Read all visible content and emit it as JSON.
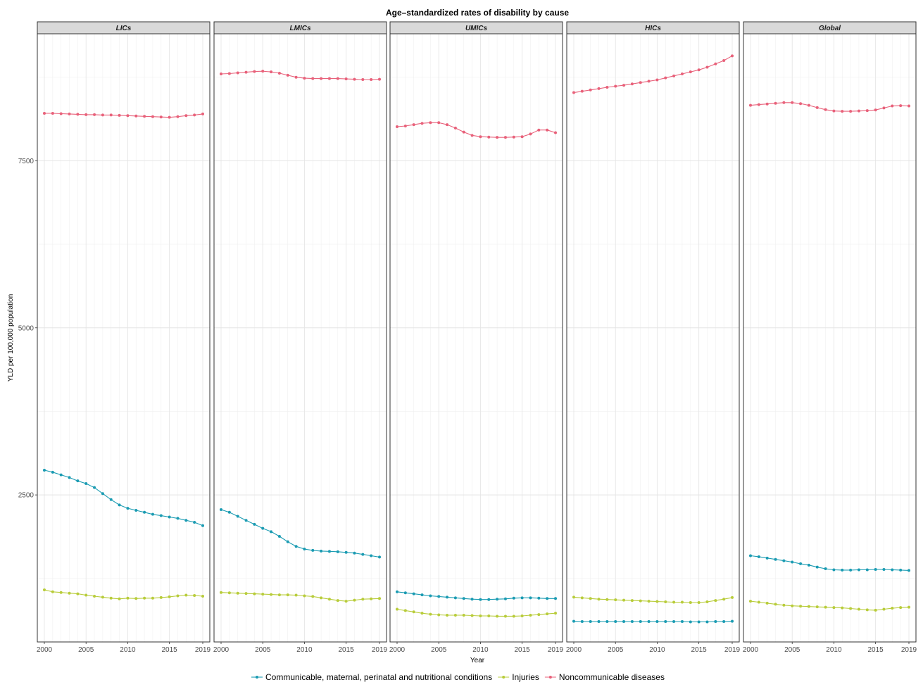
{
  "chart_data": {
    "type": "line",
    "title": "Age–standardized rates of disability by cause",
    "xlabel": "Year",
    "ylabel": "YLD per 100,000 population",
    "xlim": [
      2000,
      2019
    ],
    "ylim": [
      300,
      9400
    ],
    "x_ticks": [
      2000,
      2005,
      2010,
      2015,
      2019
    ],
    "y_ticks": [
      2500,
      5000,
      7500
    ],
    "grid": true,
    "legend_position": "bottom",
    "x": [
      2000,
      2001,
      2002,
      2003,
      2004,
      2005,
      2006,
      2007,
      2008,
      2009,
      2010,
      2011,
      2012,
      2013,
      2014,
      2015,
      2016,
      2017,
      2018,
      2019
    ],
    "series_meta": [
      {
        "name": "Communicable, maternal, perinatal and nutritional conditions",
        "color": "#1A9BB2"
      },
      {
        "name": "Injuries",
        "color": "#B8CC3A"
      },
      {
        "name": "Noncommunicable diseases",
        "color": "#E8617A"
      }
    ],
    "panels": [
      {
        "label": "LICs",
        "series": [
          {
            "name": "Communicable, maternal, perinatal and nutritional conditions",
            "values": [
              2870,
              2840,
              2800,
              2760,
              2710,
              2670,
              2610,
              2520,
              2430,
              2350,
              2300,
              2270,
              2240,
              2210,
              2190,
              2170,
              2150,
              2120,
              2090,
              2040
            ]
          },
          {
            "name": "Injuries",
            "values": [
              1080,
              1050,
              1040,
              1030,
              1020,
              1000,
              985,
              970,
              955,
              945,
              955,
              950,
              955,
              955,
              965,
              975,
              990,
              1000,
              995,
              985
            ]
          },
          {
            "name": "Noncommunicable diseases",
            "values": [
              8210,
              8210,
              8205,
              8200,
              8195,
              8190,
              8190,
              8185,
              8185,
              8180,
              8175,
              8170,
              8165,
              8160,
              8155,
              8150,
              8160,
              8175,
              8185,
              8200
            ]
          }
        ]
      },
      {
        "label": "LMICs",
        "series": [
          {
            "name": "Communicable, maternal, perinatal and nutritional conditions",
            "values": [
              2280,
              2240,
              2180,
              2120,
              2060,
              2000,
              1950,
              1880,
              1800,
              1730,
              1690,
              1670,
              1660,
              1655,
              1650,
              1640,
              1630,
              1610,
              1590,
              1570
            ]
          },
          {
            "name": "Injuries",
            "values": [
              1040,
              1035,
              1030,
              1025,
              1020,
              1015,
              1010,
              1005,
              1005,
              1000,
              990,
              980,
              960,
              940,
              920,
              910,
              925,
              940,
              945,
              950
            ]
          },
          {
            "name": "Noncommunicable diseases",
            "values": [
              8800,
              8805,
              8815,
              8825,
              8835,
              8840,
              8830,
              8810,
              8780,
              8750,
              8735,
              8730,
              8730,
              8730,
              8730,
              8725,
              8720,
              8715,
              8715,
              8720
            ]
          }
        ]
      },
      {
        "label": "UMICs",
        "series": [
          {
            "name": "Communicable, maternal, perinatal and nutritional conditions",
            "values": [
              1050,
              1035,
              1020,
              1005,
              990,
              980,
              970,
              960,
              950,
              940,
              935,
              935,
              940,
              945,
              955,
              960,
              960,
              955,
              950,
              950
            ]
          },
          {
            "name": "Injuries",
            "values": [
              790,
              770,
              750,
              730,
              715,
              705,
              700,
              700,
              700,
              695,
              690,
              690,
              685,
              685,
              685,
              690,
              700,
              710,
              720,
              730
            ]
          },
          {
            "name": "Noncommunicable diseases",
            "values": [
              8010,
              8020,
              8040,
              8060,
              8070,
              8070,
              8040,
              7990,
              7930,
              7880,
              7860,
              7855,
              7850,
              7850,
              7855,
              7860,
              7900,
              7960,
              7960,
              7920
            ]
          }
        ]
      },
      {
        "label": "HICs",
        "series": [
          {
            "name": "Communicable, maternal, perinatal and nutritional conditions",
            "values": [
              610,
              605,
              605,
              605,
              605,
              605,
              605,
              605,
              605,
              605,
              605,
              605,
              605,
              605,
              600,
              600,
              600,
              605,
              605,
              610
            ]
          },
          {
            "name": "Injuries",
            "values": [
              970,
              960,
              950,
              940,
              935,
              930,
              925,
              920,
              915,
              910,
              905,
              900,
              895,
              895,
              890,
              890,
              900,
              920,
              940,
              965
            ]
          },
          {
            "name": "Noncommunicable diseases",
            "values": [
              8520,
              8540,
              8560,
              8580,
              8600,
              8615,
              8630,
              8650,
              8670,
              8690,
              8710,
              8740,
              8770,
              8800,
              8830,
              8860,
              8900,
              8950,
              9000,
              9070
            ]
          }
        ]
      },
      {
        "label": "Global",
        "series": [
          {
            "name": "Communicable, maternal, perinatal and nutritional conditions",
            "values": [
              1590,
              1575,
              1555,
              1535,
              1515,
              1495,
              1470,
              1450,
              1420,
              1395,
              1380,
              1375,
              1375,
              1380,
              1380,
              1385,
              1385,
              1380,
              1375,
              1370
            ]
          },
          {
            "name": "Injuries",
            "values": [
              910,
              895,
              880,
              865,
              850,
              840,
              835,
              830,
              825,
              820,
              815,
              810,
              800,
              790,
              780,
              775,
              790,
              805,
              815,
              820
            ]
          },
          {
            "name": "Noncommunicable diseases",
            "values": [
              8330,
              8340,
              8350,
              8360,
              8370,
              8370,
              8355,
              8330,
              8295,
              8265,
              8245,
              8240,
              8240,
              8245,
              8250,
              8260,
              8290,
              8320,
              8325,
              8320
            ]
          }
        ]
      }
    ]
  }
}
